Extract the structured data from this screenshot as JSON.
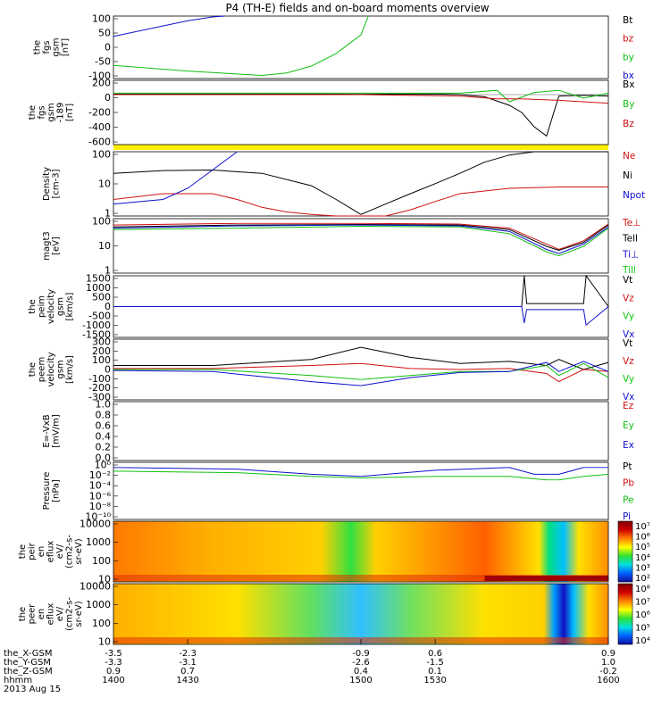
{
  "title": "P4 (TH-E) fields and on-board moments overview",
  "colors": {
    "black": "#000000",
    "red": "#d01010",
    "green": "#10c010",
    "blue": "#1010d0",
    "yellow": "#ffee00"
  },
  "chart_data": [
    {
      "type": "line",
      "id": "fgs",
      "ylabel": [
        "the",
        "fgs",
        "gsm",
        "[nT]"
      ],
      "ylim": [
        -100,
        100
      ],
      "yticks": [
        "100",
        "50",
        "0",
        "-50",
        "-100"
      ],
      "legend": [
        {
          "name": "Bt",
          "color": "black"
        },
        {
          "name": "bz",
          "color": "red"
        },
        {
          "name": "by",
          "color": "green"
        },
        {
          "name": "bx",
          "color": "blue"
        }
      ],
      "series": [
        {
          "name": "bx",
          "x": [
            1400,
            1415,
            1430,
            1440,
            1445
          ],
          "y": [
            35,
            60,
            85,
            97,
            100
          ]
        },
        {
          "name": "by",
          "x": [
            1400,
            1430,
            1460,
            1470,
            1480,
            1490,
            1500,
            1503
          ],
          "y": [
            -58,
            -76,
            -90,
            -82,
            -60,
            -20,
            40,
            100
          ]
        }
      ]
    },
    {
      "type": "line",
      "id": "fgs189",
      "ylabel": [
        "the",
        "fgs",
        "gsm",
        "-189",
        "[nT]"
      ],
      "ylim": [
        -700,
        200
      ],
      "yticks": [
        "200",
        "0",
        "-200",
        "-400",
        "-600"
      ],
      "legend": [
        {
          "name": "Bx",
          "color": "black"
        },
        {
          "name": "By",
          "color": "green"
        },
        {
          "name": "Bz",
          "color": "red"
        }
      ],
      "series": [
        {
          "name": "Bx",
          "x": [
            1400,
            1450,
            1500,
            1530,
            1540,
            1550,
            1560,
            1565,
            1570,
            1575,
            1580,
            1590,
            1600
          ],
          "y": [
            10,
            10,
            5,
            10,
            0,
            -30,
            -150,
            -250,
            -450,
            -580,
            -20,
            -10,
            -20
          ]
        },
        {
          "name": "By",
          "x": [
            1400,
            1500,
            1540,
            1555,
            1560,
            1570,
            1580,
            1590,
            1600
          ],
          "y": [
            20,
            20,
            20,
            60,
            -100,
            30,
            60,
            -50,
            20
          ]
        },
        {
          "name": "Bz",
          "x": [
            1400,
            1500,
            1540,
            1555,
            1565,
            1580,
            1600
          ],
          "y": [
            0,
            0,
            -20,
            -60,
            -60,
            -80,
            -120
          ]
        }
      ]
    },
    {
      "type": "line",
      "id": "density",
      "ylabel": [
        "Density",
        "[cm-3]"
      ],
      "ylog": true,
      "ylim": [
        0.7,
        200
      ],
      "yticks": [
        "100",
        "10",
        "1"
      ],
      "legend": [
        {
          "name": "Ne",
          "color": "red"
        },
        {
          "name": "Ni",
          "color": "black"
        },
        {
          "name": "Npot",
          "color": "blue"
        }
      ],
      "series": [
        {
          "name": "Ni",
          "x": [
            1400,
            1420,
            1440,
            1460,
            1480,
            1490,
            1500,
            1510,
            1520,
            1530,
            1540,
            1550,
            1560,
            1570,
            1580,
            1590,
            1600
          ],
          "y": [
            30,
            38,
            40,
            30,
            10,
            3,
            0.8,
            2,
            5,
            12,
            30,
            80,
            150,
            200,
            200,
            200,
            200
          ]
        },
        {
          "name": "Ne",
          "x": [
            1400,
            1420,
            1440,
            1450,
            1460,
            1470,
            1480,
            1490,
            1500,
            1510,
            1520,
            1530,
            1540,
            1560,
            1580,
            1600
          ],
          "y": [
            3,
            5,
            5,
            3,
            1.5,
            1,
            0.8,
            0.6,
            0.5,
            0.7,
            1.2,
            2.5,
            5,
            8,
            9,
            9
          ]
        },
        {
          "name": "Npot",
          "x": [
            1400,
            1420,
            1430,
            1440,
            1450
          ],
          "y": [
            2,
            3,
            8,
            40,
            200
          ]
        }
      ]
    },
    {
      "type": "line",
      "id": "magt3",
      "ylabel": [
        "magt3",
        "[eV]"
      ],
      "ylog": true,
      "ylim": [
        1,
        1000
      ],
      "yticks": [
        "100",
        "10",
        "1"
      ],
      "legend": [
        {
          "name": "Te⊥",
          "color": "red"
        },
        {
          "name": "Tell",
          "color": "black"
        },
        {
          "name": "Ti⊥",
          "color": "blue"
        },
        {
          "name": "Till",
          "color": "green"
        }
      ],
      "series": [
        {
          "name": "Te⊥",
          "x": [
            1400,
            1450,
            1500,
            1540,
            1560,
            1575,
            1580,
            1590,
            1600
          ],
          "y": [
            450,
            550,
            550,
            500,
            300,
            40,
            20,
            60,
            500
          ]
        },
        {
          "name": "Tell",
          "x": [
            1400,
            1450,
            1500,
            1540,
            1560,
            1575,
            1580,
            1590,
            1600
          ],
          "y": [
            350,
            450,
            480,
            450,
            250,
            30,
            18,
            50,
            450
          ]
        },
        {
          "name": "Ti⊥",
          "x": [
            1400,
            1450,
            1500,
            1540,
            1560,
            1575,
            1580,
            1590,
            1600
          ],
          "y": [
            300,
            400,
            450,
            400,
            200,
            20,
            12,
            40,
            350
          ]
        },
        {
          "name": "Till",
          "x": [
            1400,
            1450,
            1500,
            1540,
            1560,
            1575,
            1580,
            1590,
            1600
          ],
          "y": [
            250,
            300,
            380,
            350,
            150,
            15,
            9,
            30,
            300
          ]
        }
      ]
    },
    {
      "type": "line",
      "id": "peim",
      "ylabel": [
        "the",
        "peim",
        "velocity",
        "gsm",
        "[km/s]"
      ],
      "ylim": [
        -1500,
        1500
      ],
      "yticks": [
        "1500",
        "1000",
        "500",
        "0",
        "-500",
        "-1000",
        "-1500"
      ],
      "legend": [
        {
          "name": "Vt",
          "color": "black"
        },
        {
          "name": "Vz",
          "color": "red"
        },
        {
          "name": "Vy",
          "color": "green"
        },
        {
          "name": "Vx",
          "color": "blue"
        }
      ],
      "series": [
        {
          "name": "Vt",
          "x": [
            1400,
            1500,
            1565,
            1566,
            1567,
            1590,
            1591,
            1600
          ],
          "y": [
            0,
            0,
            0,
            1500,
            150,
            150,
            1500,
            0
          ]
        },
        {
          "name": "Vx",
          "x": [
            1400,
            1565,
            1566,
            1567,
            1590,
            1591,
            1600
          ],
          "y": [
            0,
            0,
            -800,
            -150,
            -150,
            -900,
            0
          ]
        }
      ]
    },
    {
      "type": "line",
      "id": "peem",
      "ylabel": [
        "the",
        "peem",
        "velocity",
        "gsm",
        "[km/s]"
      ],
      "ylim": [
        -300,
        300
      ],
      "yticks": [
        "300",
        "200",
        "100",
        "0",
        "-100",
        "-200",
        "-300"
      ],
      "legend": [
        {
          "name": "Vt",
          "color": "black"
        },
        {
          "name": "Vz",
          "color": "red"
        },
        {
          "name": "Vy",
          "color": "green"
        },
        {
          "name": "Vx",
          "color": "blue"
        }
      ],
      "series": [
        {
          "name": "Vt",
          "x": [
            1400,
            1440,
            1480,
            1500,
            1520,
            1540,
            1560,
            1575,
            1580,
            1590,
            1600
          ],
          "y": [
            40,
            40,
            100,
            220,
            120,
            60,
            80,
            40,
            100,
            0,
            70
          ]
        },
        {
          "name": "Vz",
          "x": [
            1400,
            1440,
            1480,
            1500,
            1520,
            1540,
            1560,
            1575,
            1580,
            1590,
            1600
          ],
          "y": [
            10,
            10,
            40,
            60,
            10,
            0,
            10,
            -40,
            -120,
            0,
            -20
          ]
        },
        {
          "name": "Vy",
          "x": [
            1400,
            1440,
            1480,
            1500,
            1520,
            1540,
            1560,
            1575,
            1580,
            1590,
            1600
          ],
          "y": [
            0,
            0,
            -60,
            -100,
            -60,
            -20,
            -20,
            40,
            -60,
            60,
            -80
          ]
        },
        {
          "name": "Vx",
          "x": [
            1400,
            1440,
            1480,
            1500,
            1520,
            1540,
            1560,
            1575,
            1580,
            1590,
            1600
          ],
          "y": [
            -10,
            -20,
            -120,
            -160,
            -80,
            -30,
            -20,
            70,
            -20,
            80,
            -20
          ]
        }
      ]
    },
    {
      "type": "line",
      "id": "efield",
      "ylabel": [
        "E=-VxB",
        "[mV/m]"
      ],
      "ylim": [
        0,
        1
      ],
      "yticks": [
        "1.0",
        "0.8",
        "0.6",
        "0.4",
        "0.2",
        "0.0"
      ],
      "legend": [
        {
          "name": "Ez",
          "color": "red"
        },
        {
          "name": "Ey",
          "color": "green"
        },
        {
          "name": "Ex",
          "color": "blue"
        }
      ],
      "series": []
    },
    {
      "type": "line",
      "id": "pressure",
      "ylabel": [
        "Pressure",
        "[nPa]"
      ],
      "ylog": true,
      "ylim": [
        1e-10,
        10
      ],
      "yticks": [
        "10⁰",
        "10⁻²",
        "10⁻⁴",
        "10⁻⁶",
        "10⁻⁸",
        "10⁻¹⁰"
      ],
      "legend": [
        {
          "name": "Pt",
          "color": "black"
        },
        {
          "name": "Pb",
          "color": "red"
        },
        {
          "name": "Pe",
          "color": "green"
        },
        {
          "name": "Pi",
          "color": "blue"
        }
      ],
      "series": [
        {
          "name": "Pi",
          "x": [
            1400,
            1450,
            1480,
            1500,
            1530,
            1560,
            1570,
            1580,
            1590,
            1600
          ],
          "y": [
            1,
            0.5,
            0.05,
            0.02,
            0.3,
            1,
            0.05,
            0.05,
            1,
            1
          ]
        },
        {
          "name": "Pe",
          "x": [
            1400,
            1450,
            1480,
            1500,
            1530,
            1560,
            1575,
            1580,
            1590,
            1600
          ],
          "y": [
            0.2,
            0.1,
            0.02,
            0.01,
            0.02,
            0.02,
            0.004,
            0.004,
            0.02,
            0.05
          ]
        }
      ]
    },
    {
      "type": "heatmap",
      "id": "peir",
      "ylabel": [
        "the",
        "peir",
        "en",
        "eflux",
        "eV/",
        "(cm2-s-",
        "sr-eV)"
      ],
      "ylog": true,
      "ylim": [
        6,
        30000
      ],
      "yticks": [
        "10000",
        "1000",
        "100",
        "10"
      ],
      "colorbar": {
        "ticks": [
          "10⁷",
          "10⁶",
          "10⁵",
          "10⁴",
          "10³",
          "10²"
        ]
      }
    },
    {
      "type": "heatmap",
      "id": "peer",
      "ylabel": [
        "the",
        "peer",
        "en",
        "eflux",
        "eV/",
        "(cm2-s-",
        "sr-eV)"
      ],
      "ylog": true,
      "ylim": [
        6,
        30000
      ],
      "yticks": [
        "10000",
        "1000",
        "100",
        "10"
      ],
      "colorbar": {
        "ticks": [
          "10⁸",
          "10⁷",
          "10⁶",
          "10⁵",
          "10⁴"
        ]
      }
    }
  ],
  "x_axis": {
    "xlim": [
      1400,
      1600
    ],
    "row_labels": [
      "the_X-GSM",
      "the_Y-GSM",
      "the_Z-GSM",
      "hhmm"
    ],
    "ticks": [
      {
        "hhmm": "1400",
        "x": 1400,
        "X": "-3.5",
        "Y": "-3.3",
        "Z": "0.9"
      },
      {
        "hhmm": "1430",
        "x": 1430,
        "X": "-2.3",
        "Y": "-3.1",
        "Z": "0.7"
      },
      {
        "hhmm": "1500",
        "x": 1500,
        "X": "-0.9",
        "Y": "-2.6",
        "Z": "0.4"
      },
      {
        "hhmm": "1530",
        "x": 1530,
        "X": "0.6",
        "Y": "-1.5",
        "Z": "0.1"
      },
      {
        "hhmm": "1600",
        "x": 1600,
        "X": "0.9",
        "Y": "1.0",
        "Z": "-0.2"
      }
    ],
    "date": "2013 Aug 15"
  }
}
